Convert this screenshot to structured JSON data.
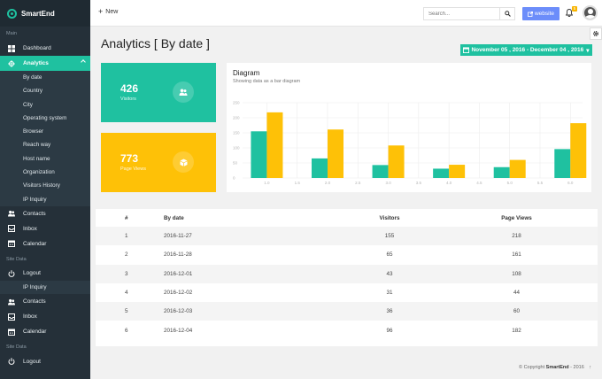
{
  "app": {
    "brand": "SmartEnd"
  },
  "sidebar": {
    "section_main": "Main",
    "dashboard": "Dashboard",
    "analytics": "Analytics",
    "analytics_sub": [
      "By date",
      "Country",
      "City",
      "Operating system",
      "Browser",
      "Reach way",
      "Host name",
      "Organization",
      "Visitors History",
      "IP Inquiry"
    ],
    "contacts": "Contacts",
    "inbox": "Inbox",
    "calendar": "Calendar",
    "section_site_data": "Site Data",
    "logout": "Logout",
    "ip_inquiry": "IP Inquiry",
    "contacts2": "Contacts",
    "inbox2": "Inbox",
    "calendar2": "Calendar",
    "section_site_data2": "Site Data",
    "logout2": "Logout"
  },
  "topbar": {
    "new_label": "New",
    "search_placeholder": "Search...",
    "website_label": "website",
    "notification_count": "5"
  },
  "page": {
    "title": "Analytics [ By date ]",
    "date_range": "November 05 , 2016 - December 04 , 2016"
  },
  "stats": {
    "visitors_value": "426",
    "visitors_label": "Visitors",
    "pageviews_value": "773",
    "pageviews_label": "Page Views"
  },
  "chart": {
    "title": "Diagram",
    "subtitle": "Showing data as a bar diagram"
  },
  "chart_data": {
    "type": "bar",
    "x": [
      1,
      2,
      3,
      4,
      5,
      6
    ],
    "x_ticks": [
      "1.0",
      "1.5",
      "2.0",
      "2.5",
      "3.0",
      "3.5",
      "4.0",
      "4.5",
      "5.0",
      "5.5",
      "6.0"
    ],
    "y_ticks": [
      "0",
      "50",
      "100",
      "150",
      "200",
      "250"
    ],
    "ylim": [
      0,
      250
    ],
    "series": [
      {
        "values": [
          155,
          65,
          43,
          31,
          36,
          96
        ],
        "color": "#1fc1a0"
      },
      {
        "values": [
          218,
          161,
          108,
          44,
          60,
          182
        ],
        "color": "#fec107"
      }
    ],
    "grid": true
  },
  "table": {
    "headers": [
      "#",
      "By date",
      "Visitors",
      "Page Views"
    ],
    "rows": [
      [
        "1",
        "2016-11-27",
        "155",
        "218"
      ],
      [
        "2",
        "2016-11-28",
        "65",
        "161"
      ],
      [
        "3",
        "2016-12-01",
        "43",
        "108"
      ],
      [
        "4",
        "2016-12-02",
        "31",
        "44"
      ],
      [
        "5",
        "2016-12-03",
        "36",
        "60"
      ],
      [
        "6",
        "2016-12-04",
        "96",
        "182"
      ]
    ]
  },
  "footer": {
    "prefix": "© Copyright",
    "brand": "SmartEnd",
    "suffix": "- 2016"
  },
  "colors": {
    "accent": "#1fc1a0",
    "yellow": "#fec107",
    "sidebar": "#253039",
    "website_btn": "#6c8dfa"
  }
}
